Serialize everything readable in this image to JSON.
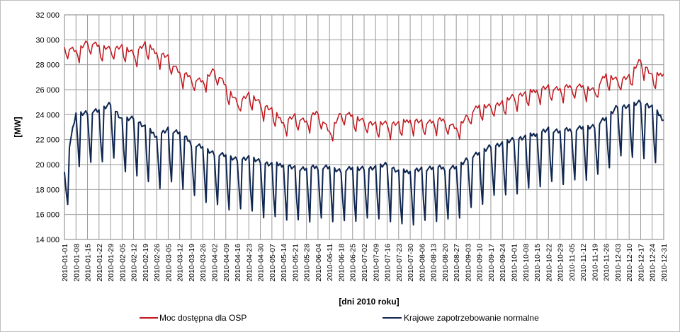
{
  "chart_data": {
    "type": "line",
    "xlabel": "[dni 2010  roku]",
    "ylabel": "[MW]",
    "ylim": [
      14000,
      32000
    ],
    "y_ticks": [
      "14 000",
      "16 000",
      "18 000",
      "20 000",
      "22 000",
      "24 000",
      "26 000",
      "28 000",
      "30 000",
      "32 000"
    ],
    "x_ticks": [
      "2010-01-01",
      "2010-01-08",
      "2010-01-15",
      "2010-01-22",
      "2010-01-29",
      "2010-02-05",
      "2010-02-12",
      "2010-02-19",
      "2010-02-26",
      "2010-03-05",
      "2010-03-12",
      "2010-03-19",
      "2010-03-26",
      "2010-04-02",
      "2010-04-09",
      "2010-04-16",
      "2010-04-23",
      "2010-04-30",
      "2010-05-07",
      "2010-05-14",
      "2010-05-21",
      "2010-05-28",
      "2010-06-04",
      "2010-06-11",
      "2010-06-18",
      "2010-06-25",
      "2010-07-02",
      "2010-07-09",
      "2010-07-16",
      "2010-07-23",
      "2010-07-30",
      "2010-08-06",
      "2010-08-13",
      "2010-08-20",
      "2010-08-27",
      "2010-09-03",
      "2010-09-10",
      "2010-09-17",
      "2010-09-24",
      "2010-10-01",
      "2010-10-08",
      "2010-10-15",
      "2010-10-22",
      "2010-10-29",
      "2010-11-05",
      "2010-11-12",
      "2010-11-19",
      "2010-11-26",
      "2010-12-03",
      "2010-12-10",
      "2010-12-17",
      "2010-12-24",
      "2010-12-31"
    ],
    "grid": true,
    "legend_position": "bottom",
    "series_sampling": "weekly points at the x tick dates, with daily detail shown as weekend dips",
    "series": [
      {
        "name": "Moc dostępna dla OSP",
        "color": "#c0161c",
        "values": [
          29600,
          29100,
          29900,
          29500,
          29300,
          29500,
          28900,
          29700,
          29000,
          28600,
          27400,
          27000,
          26700,
          27700,
          26300,
          25000,
          25700,
          24900,
          24400,
          23400,
          23900,
          23500,
          24300,
          22600,
          24200,
          23900,
          23500,
          23300,
          23300,
          23300,
          23600,
          23400,
          23500,
          23600,
          22900,
          24000,
          24700,
          24700,
          25000,
          25500,
          25700,
          26000,
          26200,
          26100,
          26300,
          26300,
          26000,
          27200,
          26800,
          27100,
          28400,
          27100,
          27300
        ]
      },
      {
        "name": "Krajowe zapotrzebowanie normalne",
        "color": "#0f2650",
        "values": [
          19600,
          24100,
          24200,
          24300,
          24900,
          23600,
          23700,
          23000,
          22300,
          22800,
          22600,
          21700,
          21400,
          20900,
          20700,
          20400,
          20600,
          20200,
          20000,
          20000,
          19700,
          19700,
          19800,
          19800,
          19500,
          19700,
          19700,
          19800,
          20000,
          19400,
          19500,
          19600,
          19800,
          19700,
          19800,
          20500,
          20900,
          21500,
          21700,
          22000,
          22200,
          22500,
          22800,
          22700,
          22800,
          23000,
          23100,
          23700,
          24700,
          24700,
          25000,
          24600,
          23600
        ]
      }
    ]
  }
}
